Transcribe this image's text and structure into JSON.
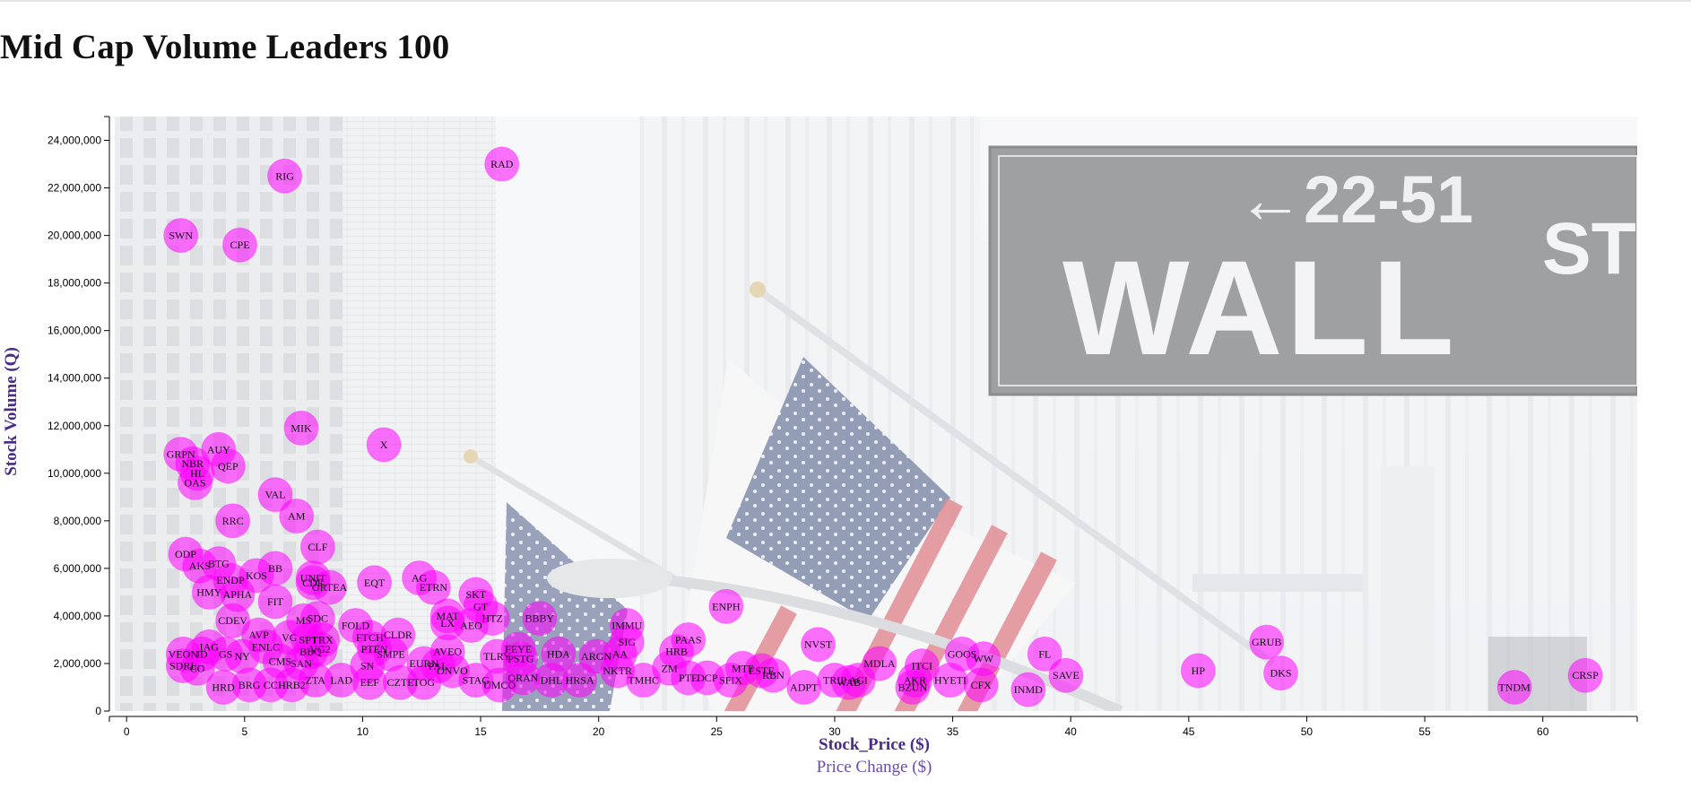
{
  "page": {
    "title": "Mid Cap Volume Leaders 100"
  },
  "colors": {
    "bubble": "#ff00ff",
    "axis_title": "#4b2a8a",
    "background_photo_tint": "#eef0f3"
  },
  "background": {
    "description_icon": "wall-street-photo"
  },
  "chart_data": {
    "type": "scatter",
    "title": "",
    "xlabel": "Stock_Price ($)",
    "xlabel_secondary": "Price Change ($)",
    "ylabel": "Stock Volume (Q)",
    "xlim": [
      -0.5,
      64
    ],
    "ylim": [
      0,
      25000000
    ],
    "xticks": [
      0,
      5,
      10,
      15,
      20,
      25,
      30,
      35,
      40,
      45,
      50,
      55,
      60
    ],
    "yticks": [
      0,
      2000000,
      4000000,
      6000000,
      8000000,
      10000000,
      12000000,
      14000000,
      16000000,
      18000000,
      20000000,
      22000000,
      24000000
    ],
    "grid": false,
    "points": [
      {
        "label": "RAD",
        "x": 15.9,
        "y": 23000000
      },
      {
        "label": "RIG",
        "x": 6.7,
        "y": 22500000
      },
      {
        "label": "SWN",
        "x": 2.3,
        "y": 20000000
      },
      {
        "label": "CPE",
        "x": 4.8,
        "y": 19600000
      },
      {
        "label": "MIK",
        "x": 7.4,
        "y": 11900000
      },
      {
        "label": "X",
        "x": 10.9,
        "y": 11200000
      },
      {
        "label": "AUY",
        "x": 3.9,
        "y": 11000000
      },
      {
        "label": "GRPN",
        "x": 2.3,
        "y": 10800000
      },
      {
        "label": "NBR",
        "x": 2.8,
        "y": 10400000
      },
      {
        "label": "QEP",
        "x": 4.3,
        "y": 10300000
      },
      {
        "label": "HL",
        "x": 3.0,
        "y": 10000000
      },
      {
        "label": "OAS",
        "x": 2.9,
        "y": 9600000
      },
      {
        "label": "VAL",
        "x": 6.3,
        "y": 9100000
      },
      {
        "label": "AM",
        "x": 7.2,
        "y": 8200000
      },
      {
        "label": "RRC",
        "x": 4.5,
        "y": 8000000
      },
      {
        "label": "CLF",
        "x": 8.1,
        "y": 6900000
      },
      {
        "label": "ODP",
        "x": 2.5,
        "y": 6600000
      },
      {
        "label": "BTG",
        "x": 3.9,
        "y": 6200000
      },
      {
        "label": "AKS",
        "x": 3.1,
        "y": 6100000
      },
      {
        "label": "BB",
        "x": 6.3,
        "y": 6000000
      },
      {
        "label": "KOS",
        "x": 5.5,
        "y": 5700000
      },
      {
        "label": "UNIT",
        "x": 7.9,
        "y": 5600000
      },
      {
        "label": "ENDP",
        "x": 4.4,
        "y": 5500000
      },
      {
        "label": "CDE",
        "x": 7.9,
        "y": 5400000
      },
      {
        "label": "ORTEA",
        "x": 8.6,
        "y": 5200000
      },
      {
        "label": "EQT",
        "x": 10.5,
        "y": 5400000
      },
      {
        "label": "AG",
        "x": 12.4,
        "y": 5600000
      },
      {
        "label": "ETRN",
        "x": 13.0,
        "y": 5200000
      },
      {
        "label": "SKT",
        "x": 14.8,
        "y": 4900000
      },
      {
        "label": "HMY",
        "x": 3.5,
        "y": 5000000
      },
      {
        "label": "APHA",
        "x": 4.7,
        "y": 4900000
      },
      {
        "label": "FIT",
        "x": 6.3,
        "y": 4600000
      },
      {
        "label": "GT",
        "x": 15.0,
        "y": 4400000
      },
      {
        "label": "ENPH",
        "x": 25.4,
        "y": 4400000
      },
      {
        "label": "MAT",
        "x": 13.6,
        "y": 4000000
      },
      {
        "label": "HTZ",
        "x": 15.5,
        "y": 3900000
      },
      {
        "label": "BBBY",
        "x": 17.5,
        "y": 3900000
      },
      {
        "label": "LX",
        "x": 13.6,
        "y": 3700000
      },
      {
        "label": "AEO",
        "x": 14.6,
        "y": 3600000
      },
      {
        "label": "CDEV",
        "x": 4.5,
        "y": 3800000
      },
      {
        "label": "MS",
        "x": 7.5,
        "y": 3800000
      },
      {
        "label": "SDC",
        "x": 8.1,
        "y": 3900000
      },
      {
        "label": "FOLD",
        "x": 9.7,
        "y": 3600000
      },
      {
        "label": "IMMU",
        "x": 21.2,
        "y": 3600000
      },
      {
        "label": "AVP",
        "x": 5.6,
        "y": 3200000
      },
      {
        "label": "VG",
        "x": 6.9,
        "y": 3100000
      },
      {
        "label": "SPT",
        "x": 7.7,
        "y": 3000000
      },
      {
        "label": "TRX",
        "x": 8.3,
        "y": 3000000
      },
      {
        "label": "FTCH",
        "x": 10.3,
        "y": 3100000
      },
      {
        "label": "CLDR",
        "x": 11.5,
        "y": 3200000
      },
      {
        "label": "SIG",
        "x": 21.2,
        "y": 2900000
      },
      {
        "label": "PAAS",
        "x": 23.8,
        "y": 3000000
      },
      {
        "label": "NVST",
        "x": 29.3,
        "y": 2800000
      },
      {
        "label": "GRUB",
        "x": 48.3,
        "y": 2900000
      },
      {
        "label": "IAG",
        "x": 3.5,
        "y": 2700000
      },
      {
        "label": "ENLC",
        "x": 5.9,
        "y": 2700000
      },
      {
        "label": "VG2",
        "x": 8.2,
        "y": 2600000
      },
      {
        "label": "PTEN",
        "x": 10.5,
        "y": 2600000
      },
      {
        "label": "FEYE",
        "x": 16.6,
        "y": 2600000
      },
      {
        "label": "HRB",
        "x": 23.3,
        "y": 2500000
      },
      {
        "label": "GOOS",
        "x": 35.4,
        "y": 2400000
      },
      {
        "label": "FL",
        "x": 38.9,
        "y": 2400000
      },
      {
        "label": "WW",
        "x": 36.3,
        "y": 2200000
      },
      {
        "label": "VEON",
        "x": 2.4,
        "y": 2400000
      },
      {
        "label": "ID",
        "x": 3.2,
        "y": 2400000
      },
      {
        "label": "GS",
        "x": 4.2,
        "y": 2400000
      },
      {
        "label": "NY",
        "x": 4.9,
        "y": 2300000
      },
      {
        "label": "BBQ",
        "x": 7.8,
        "y": 2500000
      },
      {
        "label": "SMPE",
        "x": 11.2,
        "y": 2400000
      },
      {
        "label": "AVEO",
        "x": 13.6,
        "y": 2500000
      },
      {
        "label": "TLRY",
        "x": 15.7,
        "y": 2300000
      },
      {
        "label": "PSTG",
        "x": 16.7,
        "y": 2200000
      },
      {
        "label": "HDA",
        "x": 18.3,
        "y": 2400000
      },
      {
        "label": "ARGN",
        "x": 19.9,
        "y": 2300000
      },
      {
        "label": "AA",
        "x": 20.9,
        "y": 2400000
      },
      {
        "label": "MDLA",
        "x": 31.9,
        "y": 2000000
      },
      {
        "label": "ITCI",
        "x": 33.7,
        "y": 1900000
      },
      {
        "label": "HP",
        "x": 45.4,
        "y": 1700000
      },
      {
        "label": "EURN",
        "x": 12.6,
        "y": 2000000
      },
      {
        "label": "PAL",
        "x": 13.2,
        "y": 1900000
      },
      {
        "label": "SDRL",
        "x": 2.4,
        "y": 1900000
      },
      {
        "label": "CO",
        "x": 3.0,
        "y": 1800000
      },
      {
        "label": "CMS",
        "x": 6.5,
        "y": 2100000
      },
      {
        "label": "SAN",
        "x": 7.4,
        "y": 2000000
      },
      {
        "label": "SN",
        "x": 10.2,
        "y": 1900000
      },
      {
        "label": "ONVO",
        "x": 13.8,
        "y": 1700000
      },
      {
        "label": "NKTR",
        "x": 20.8,
        "y": 1700000
      },
      {
        "label": "ZM",
        "x": 23.0,
        "y": 1800000
      },
      {
        "label": "MTF",
        "x": 26.1,
        "y": 1800000
      },
      {
        "label": "ESTE",
        "x": 26.9,
        "y": 1700000
      },
      {
        "label": "DKS",
        "x": 48.9,
        "y": 1600000
      },
      {
        "label": "SAVE",
        "x": 39.8,
        "y": 1500000
      },
      {
        "label": "CRSP",
        "x": 61.8,
        "y": 1500000
      },
      {
        "label": "TMHC",
        "x": 21.9,
        "y": 1300000
      },
      {
        "label": "PTE",
        "x": 23.8,
        "y": 1400000
      },
      {
        "label": "DCP",
        "x": 24.6,
        "y": 1400000
      },
      {
        "label": "SFIX",
        "x": 25.6,
        "y": 1300000
      },
      {
        "label": "RBN",
        "x": 27.4,
        "y": 1500000
      },
      {
        "label": "TRIP",
        "x": 30.0,
        "y": 1300000
      },
      {
        "label": "WAB",
        "x": 30.6,
        "y": 1200000
      },
      {
        "label": "AGI",
        "x": 31.0,
        "y": 1300000
      },
      {
        "label": "AKR",
        "x": 33.4,
        "y": 1300000
      },
      {
        "label": "HYETI",
        "x": 34.9,
        "y": 1300000
      },
      {
        "label": "CFX",
        "x": 36.2,
        "y": 1100000
      },
      {
        "label": "ADPT",
        "x": 28.7,
        "y": 1000000
      },
      {
        "label": "BZUN",
        "x": 33.3,
        "y": 1000000
      },
      {
        "label": "INMD",
        "x": 38.2,
        "y": 900000
      },
      {
        "label": "TNDM",
        "x": 58.8,
        "y": 1000000
      },
      {
        "label": "HRD",
        "x": 4.1,
        "y": 1000000
      },
      {
        "label": "BRG",
        "x": 5.2,
        "y": 1100000
      },
      {
        "label": "CC",
        "x": 6.1,
        "y": 1100000
      },
      {
        "label": "HRB2",
        "x": 7.0,
        "y": 1100000
      },
      {
        "label": "ZTA",
        "x": 8.0,
        "y": 1300000
      },
      {
        "label": "LAD",
        "x": 9.1,
        "y": 1300000
      },
      {
        "label": "EEF",
        "x": 10.3,
        "y": 1200000
      },
      {
        "label": "CZTE",
        "x": 11.6,
        "y": 1200000
      },
      {
        "label": "TOG",
        "x": 12.6,
        "y": 1200000
      },
      {
        "label": "STAG",
        "x": 14.8,
        "y": 1300000
      },
      {
        "label": "UMCO",
        "x": 15.8,
        "y": 1100000
      },
      {
        "label": "ORAN",
        "x": 16.8,
        "y": 1400000
      },
      {
        "label": "DHL",
        "x": 18.0,
        "y": 1300000
      },
      {
        "label": "HRSA",
        "x": 19.2,
        "y": 1300000
      }
    ]
  }
}
